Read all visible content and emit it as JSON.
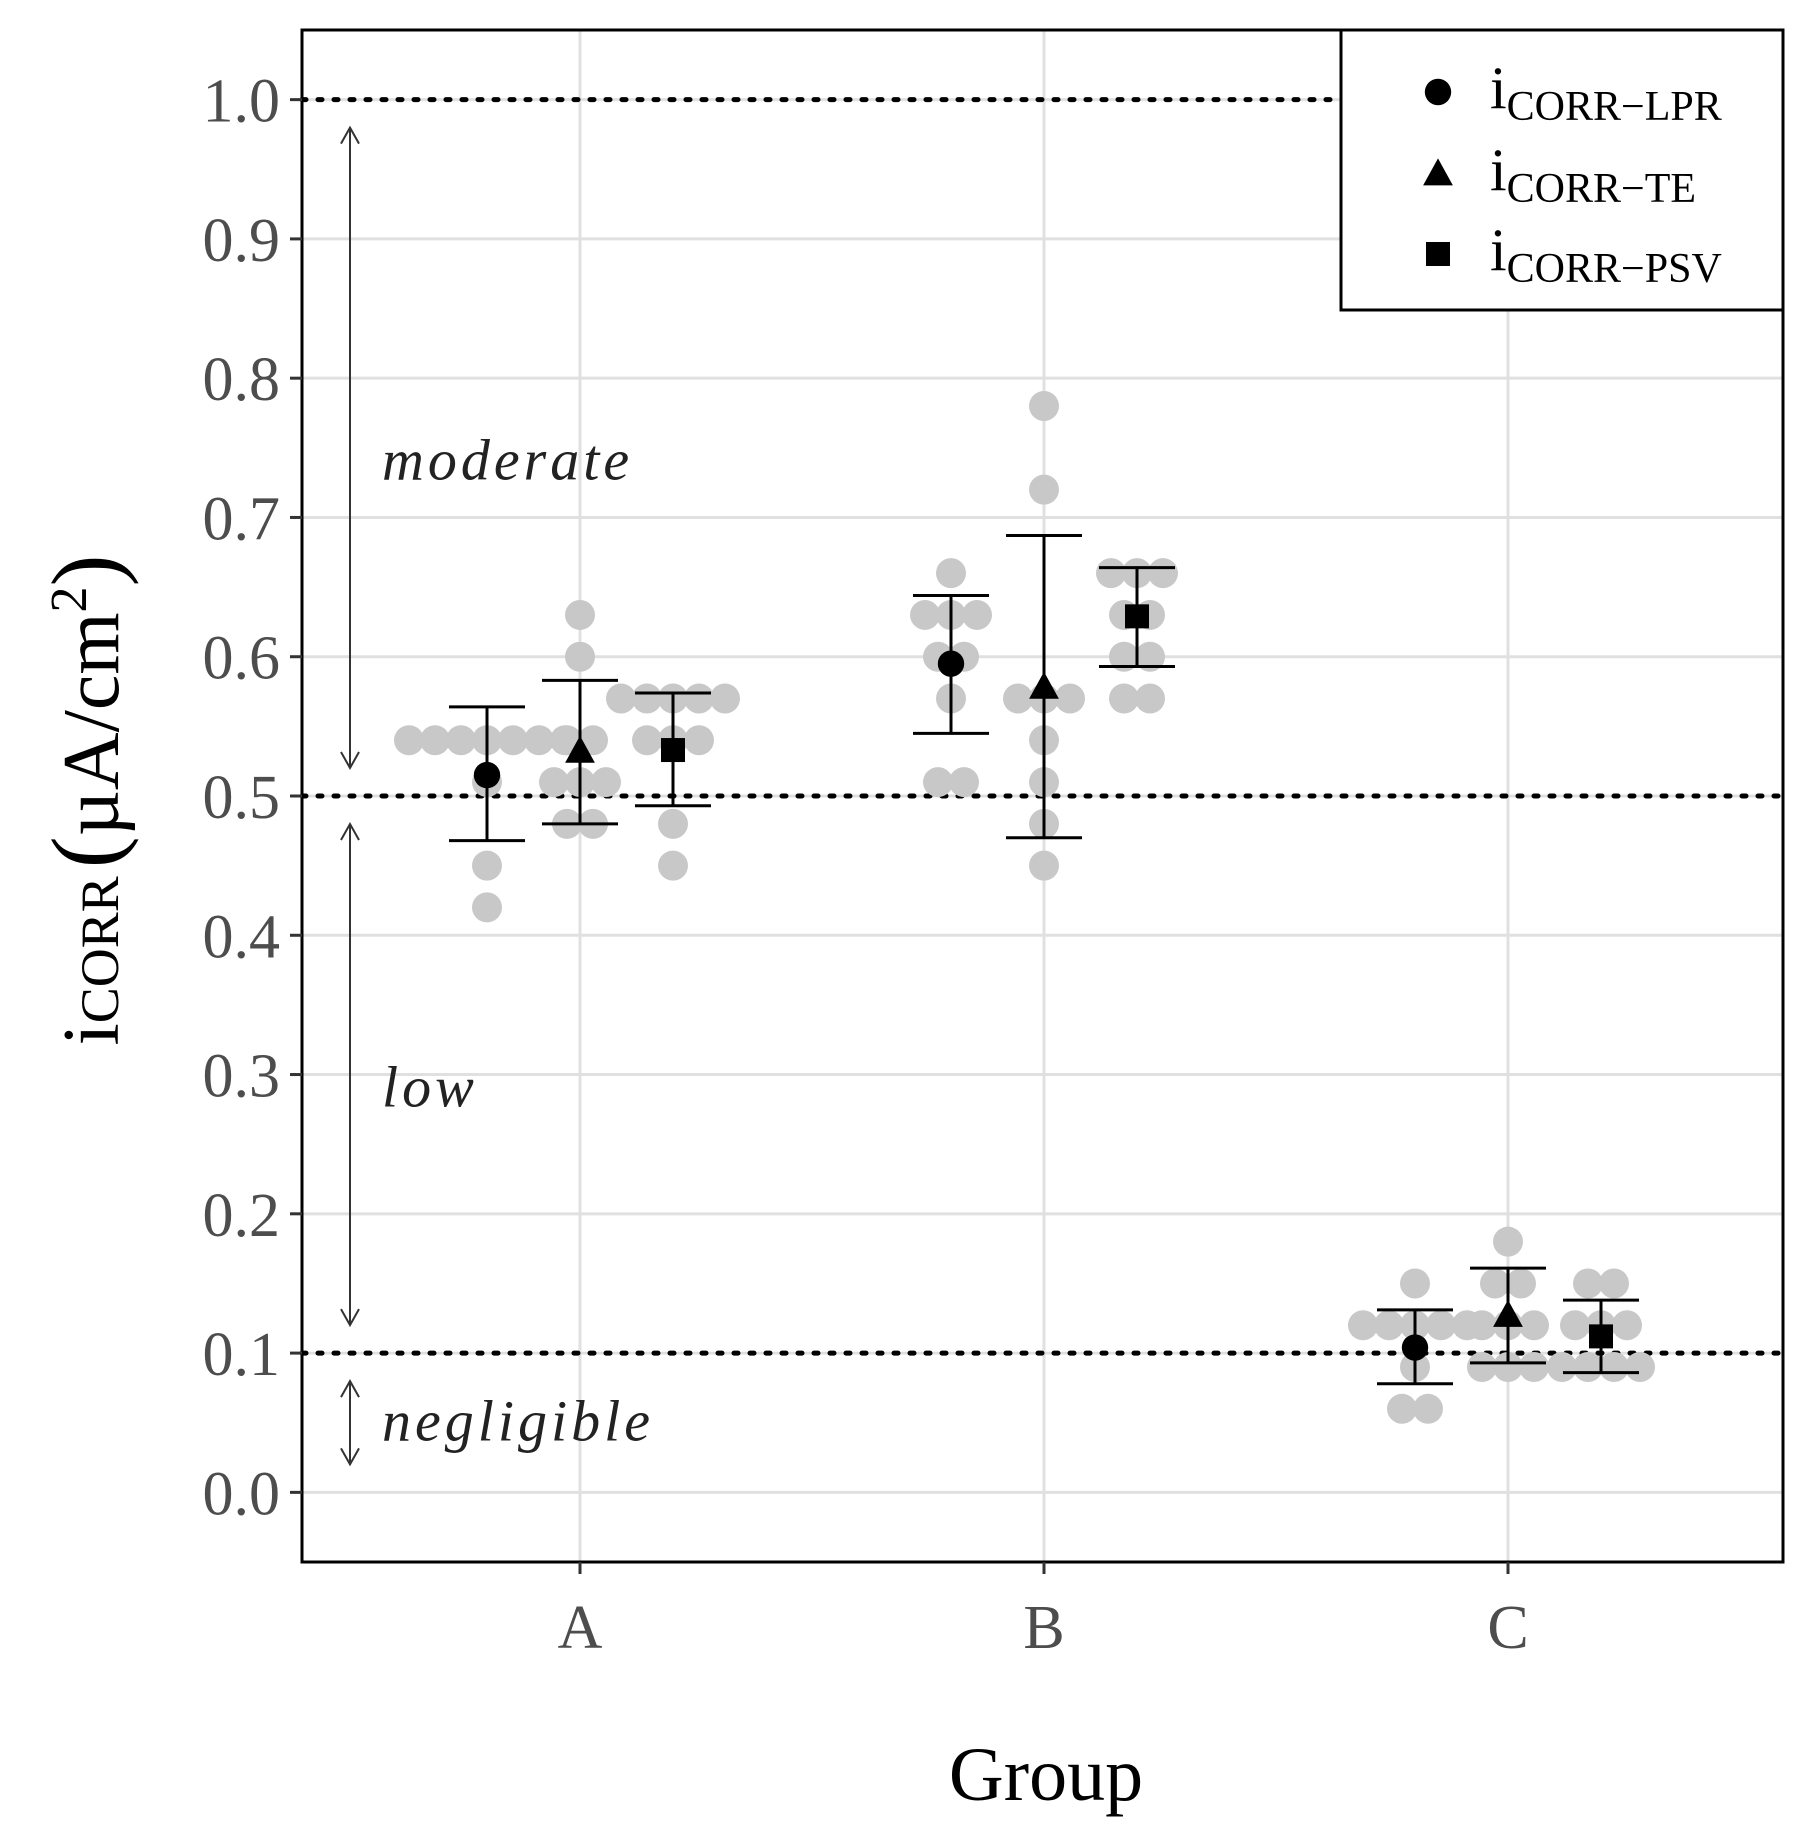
{
  "chart_data": {
    "type": "scatter",
    "title": "",
    "xlabel": "Group",
    "ylabel": {
      "base": "i",
      "sub": "CORR",
      "unit_open": "(",
      "unit": "µA/cm",
      "unit_sup": "2",
      "unit_close": ")"
    },
    "categories": [
      "A",
      "B",
      "C"
    ],
    "ylim": [
      -0.05,
      1.05
    ],
    "yticks": [
      0.0,
      0.1,
      0.2,
      0.3,
      0.4,
      0.5,
      0.6,
      0.7,
      0.8,
      0.9,
      1.0
    ],
    "ytick_labels": [
      "0.0",
      "0.1",
      "0.2",
      "0.3",
      "0.4",
      "0.5",
      "0.6",
      "0.7",
      "0.8",
      "0.9",
      "1.0"
    ],
    "grid": true,
    "reference_lines": [
      0.1,
      0.5,
      1.0
    ],
    "regions": [
      {
        "label": "moderate",
        "from": 0.5,
        "to": 1.0
      },
      {
        "label": "low",
        "from": 0.1,
        "to": 0.5
      },
      {
        "label": "negligible",
        "from": 0.0,
        "to": 0.1
      }
    ],
    "legend": {
      "position": "top-right"
    },
    "series": [
      {
        "name": "i_CORR-LPR",
        "base": "i",
        "sub": "CORR−LPR",
        "marker": "circle",
        "mean": [
          0.515,
          0.595,
          0.104
        ],
        "error_low": [
          0.468,
          0.545,
          0.078
        ],
        "error_high": [
          0.564,
          0.644,
          0.131
        ],
        "points": [
          [
            0.54,
            0.54,
            0.54,
            0.54,
            0.54,
            0.54,
            0.45,
            0.42,
            0.51,
            0.54
          ],
          [
            0.66,
            0.63,
            0.63,
            0.6,
            0.57,
            0.51,
            0.51,
            0.6,
            0.63
          ],
          [
            0.15,
            0.12,
            0.12,
            0.12,
            0.12,
            0.09,
            0.06,
            0.06,
            0.12
          ]
        ]
      },
      {
        "name": "i_CORR-TE",
        "base": "i",
        "sub": "CORR−TE",
        "marker": "triangle",
        "mean": [
          0.532,
          0.578,
          0.127
        ],
        "error_low": [
          0.48,
          0.47,
          0.093
        ],
        "error_high": [
          0.583,
          0.687,
          0.161
        ],
        "points": [
          [
            0.63,
            0.6,
            0.54,
            0.51,
            0.51,
            0.51,
            0.48,
            0.48,
            0.54
          ],
          [
            0.78,
            0.72,
            0.57,
            0.57,
            0.54,
            0.51,
            0.48,
            0.45,
            0.57
          ],
          [
            0.18,
            0.15,
            0.15,
            0.12,
            0.12,
            0.09,
            0.09,
            0.09,
            0.12
          ]
        ]
      },
      {
        "name": "i_CORR-PSV",
        "base": "i",
        "sub": "CORR−PSV",
        "marker": "square",
        "mean": [
          0.533,
          0.629,
          0.112
        ],
        "error_low": [
          0.493,
          0.593,
          0.086
        ],
        "error_high": [
          0.574,
          0.664,
          0.138
        ],
        "points": [
          [
            0.57,
            0.57,
            0.57,
            0.57,
            0.54,
            0.54,
            0.54,
            0.48,
            0.45,
            0.57
          ],
          [
            0.66,
            0.66,
            0.66,
            0.63,
            0.63,
            0.6,
            0.57,
            0.57,
            0.6
          ],
          [
            0.15,
            0.15,
            0.12,
            0.12,
            0.09,
            0.09,
            0.09,
            0.09,
            0.12
          ]
        ]
      }
    ]
  }
}
